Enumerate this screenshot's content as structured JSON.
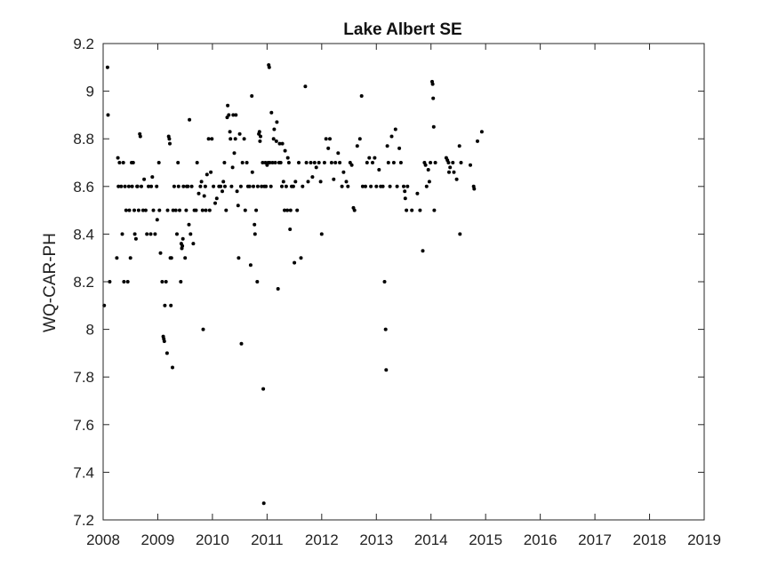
{
  "chart_data": {
    "type": "scatter",
    "title": "Lake Albert SE",
    "xlabel": "",
    "ylabel": "WQ-CAR-PH",
    "xlim": [
      2008,
      2019
    ],
    "ylim": [
      7.2,
      9.2
    ],
    "xticks": [
      "2008",
      "2009",
      "2010",
      "2011",
      "2012",
      "2013",
      "2014",
      "2015",
      "2016",
      "2017",
      "2018",
      "2019"
    ],
    "yticks": [
      "7.2",
      "7.4",
      "7.6",
      "7.8",
      "8",
      "8.2",
      "8.4",
      "8.6",
      "8.8",
      "9",
      "9.2"
    ],
    "grid": false,
    "marker_color": "#000000",
    "points": [
      [
        2008.02,
        8.1
      ],
      [
        2008.08,
        9.1
      ],
      [
        2008.09,
        8.9
      ],
      [
        2008.12,
        8.2
      ],
      [
        2008.25,
        8.3
      ],
      [
        2008.27,
        8.72
      ],
      [
        2008.28,
        8.6
      ],
      [
        2008.3,
        8.7
      ],
      [
        2008.33,
        8.6
      ],
      [
        2008.35,
        8.4
      ],
      [
        2008.37,
        8.7
      ],
      [
        2008.38,
        8.2
      ],
      [
        2008.4,
        8.6
      ],
      [
        2008.42,
        8.5
      ],
      [
        2008.45,
        8.2
      ],
      [
        2008.47,
        8.6
      ],
      [
        2008.48,
        8.5
      ],
      [
        2008.5,
        8.3
      ],
      [
        2008.52,
        8.7
      ],
      [
        2008.53,
        8.6
      ],
      [
        2008.55,
        8.7
      ],
      [
        2008.57,
        8.5
      ],
      [
        2008.58,
        8.4
      ],
      [
        2008.6,
        8.38
      ],
      [
        2008.62,
        8.6
      ],
      [
        2008.63,
        8.6
      ],
      [
        2008.65,
        8.5
      ],
      [
        2008.67,
        8.82
      ],
      [
        2008.68,
        8.81
      ],
      [
        2008.7,
        8.6
      ],
      [
        2008.73,
        8.5
      ],
      [
        2008.75,
        8.63
      ],
      [
        2008.78,
        8.5
      ],
      [
        2008.8,
        8.4
      ],
      [
        2008.83,
        8.6
      ],
      [
        2008.87,
        8.4
      ],
      [
        2008.88,
        8.6
      ],
      [
        2008.9,
        8.64
      ],
      [
        2008.92,
        8.5
      ],
      [
        2008.95,
        8.4
      ],
      [
        2008.98,
        8.6
      ],
      [
        2008.99,
        8.46
      ],
      [
        2009.02,
        8.7
      ],
      [
        2009.03,
        8.5
      ],
      [
        2009.05,
        8.32
      ],
      [
        2009.08,
        8.2
      ],
      [
        2009.1,
        7.97
      ],
      [
        2009.11,
        7.96
      ],
      [
        2009.12,
        7.95
      ],
      [
        2009.13,
        8.1
      ],
      [
        2009.15,
        8.2
      ],
      [
        2009.17,
        7.9
      ],
      [
        2009.18,
        8.5
      ],
      [
        2009.2,
        8.81
      ],
      [
        2009.21,
        8.8
      ],
      [
        2009.22,
        8.78
      ],
      [
        2009.23,
        8.3
      ],
      [
        2009.24,
        8.1
      ],
      [
        2009.25,
        8.3
      ],
      [
        2009.27,
        7.84
      ],
      [
        2009.28,
        8.5
      ],
      [
        2009.3,
        8.6
      ],
      [
        2009.33,
        8.5
      ],
      [
        2009.35,
        8.4
      ],
      [
        2009.37,
        8.7
      ],
      [
        2009.38,
        8.6
      ],
      [
        2009.4,
        8.5
      ],
      [
        2009.42,
        8.2
      ],
      [
        2009.43,
        8.36
      ],
      [
        2009.44,
        8.34
      ],
      [
        2009.45,
        8.35
      ],
      [
        2009.46,
        8.38
      ],
      [
        2009.47,
        8.6
      ],
      [
        2009.5,
        8.3
      ],
      [
        2009.52,
        8.5
      ],
      [
        2009.53,
        8.6
      ],
      [
        2009.55,
        8.6
      ],
      [
        2009.57,
        8.44
      ],
      [
        2009.58,
        8.88
      ],
      [
        2009.6,
        8.4
      ],
      [
        2009.62,
        8.6
      ],
      [
        2009.65,
        8.36
      ],
      [
        2009.67,
        8.5
      ],
      [
        2009.7,
        8.5
      ],
      [
        2009.72,
        8.7
      ],
      [
        2009.75,
        8.57
      ],
      [
        2009.78,
        8.6
      ],
      [
        2009.8,
        8.62
      ],
      [
        2009.82,
        8.5
      ],
      [
        2009.83,
        8.0
      ],
      [
        2009.85,
        8.56
      ],
      [
        2009.87,
        8.6
      ],
      [
        2009.88,
        8.5
      ],
      [
        2009.9,
        8.65
      ],
      [
        2009.93,
        8.8
      ],
      [
        2009.95,
        8.5
      ],
      [
        2009.97,
        8.66
      ],
      [
        2009.99,
        8.8
      ],
      [
        2010.02,
        8.6
      ],
      [
        2010.05,
        8.53
      ],
      [
        2010.08,
        8.55
      ],
      [
        2010.12,
        8.6
      ],
      [
        2010.15,
        8.6
      ],
      [
        2010.18,
        8.58
      ],
      [
        2010.2,
        8.62
      ],
      [
        2010.22,
        8.7
      ],
      [
        2010.23,
        8.6
      ],
      [
        2010.25,
        8.5
      ],
      [
        2010.27,
        8.89
      ],
      [
        2010.28,
        8.94
      ],
      [
        2010.3,
        8.9
      ],
      [
        2010.32,
        8.83
      ],
      [
        2010.33,
        8.8
      ],
      [
        2010.35,
        8.6
      ],
      [
        2010.37,
        8.68
      ],
      [
        2010.38,
        8.9
      ],
      [
        2010.4,
        8.74
      ],
      [
        2010.42,
        8.8
      ],
      [
        2010.43,
        8.9
      ],
      [
        2010.45,
        8.58
      ],
      [
        2010.47,
        8.52
      ],
      [
        2010.48,
        8.3
      ],
      [
        2010.5,
        8.82
      ],
      [
        2010.52,
        8.6
      ],
      [
        2010.53,
        7.94
      ],
      [
        2010.55,
        8.7
      ],
      [
        2010.58,
        8.8
      ],
      [
        2010.6,
        8.5
      ],
      [
        2010.63,
        8.7
      ],
      [
        2010.65,
        8.6
      ],
      [
        2010.68,
        8.6
      ],
      [
        2010.7,
        8.27
      ],
      [
        2010.72,
        8.98
      ],
      [
        2010.73,
        8.66
      ],
      [
        2010.75,
        8.6
      ],
      [
        2010.77,
        8.44
      ],
      [
        2010.78,
        8.4
      ],
      [
        2010.8,
        8.5
      ],
      [
        2010.82,
        8.2
      ],
      [
        2010.83,
        8.6
      ],
      [
        2010.85,
        8.82
      ],
      [
        2010.86,
        8.83
      ],
      [
        2010.87,
        8.79
      ],
      [
        2010.88,
        8.81
      ],
      [
        2010.9,
        8.6
      ],
      [
        2010.92,
        8.7
      ],
      [
        2010.93,
        7.75
      ],
      [
        2010.94,
        7.27
      ],
      [
        2010.95,
        8.6
      ],
      [
        2010.97,
        8.7
      ],
      [
        2010.98,
        8.6
      ],
      [
        2011.0,
        8.69
      ],
      [
        2011.02,
        8.7
      ],
      [
        2011.03,
        9.11
      ],
      [
        2011.04,
        9.1
      ],
      [
        2011.05,
        8.7
      ],
      [
        2011.07,
        8.6
      ],
      [
        2011.08,
        8.91
      ],
      [
        2011.1,
        8.7
      ],
      [
        2011.12,
        8.8
      ],
      [
        2011.13,
        8.84
      ],
      [
        2011.15,
        8.7
      ],
      [
        2011.17,
        8.79
      ],
      [
        2011.18,
        8.87
      ],
      [
        2011.2,
        8.17
      ],
      [
        2011.22,
        8.7
      ],
      [
        2011.23,
        8.78
      ],
      [
        2011.25,
        8.7
      ],
      [
        2011.27,
        8.6
      ],
      [
        2011.28,
        8.78
      ],
      [
        2011.3,
        8.62
      ],
      [
        2011.32,
        8.5
      ],
      [
        2011.33,
        8.75
      ],
      [
        2011.35,
        8.6
      ],
      [
        2011.37,
        8.5
      ],
      [
        2011.38,
        8.72
      ],
      [
        2011.4,
        8.7
      ],
      [
        2011.42,
        8.42
      ],
      [
        2011.43,
        8.5
      ],
      [
        2011.45,
        8.6
      ],
      [
        2011.48,
        8.6
      ],
      [
        2011.5,
        8.28
      ],
      [
        2011.52,
        8.62
      ],
      [
        2011.55,
        8.5
      ],
      [
        2011.58,
        8.7
      ],
      [
        2011.62,
        8.3
      ],
      [
        2011.65,
        8.6
      ],
      [
        2011.7,
        9.02
      ],
      [
        2011.72,
        8.7
      ],
      [
        2011.75,
        8.62
      ],
      [
        2011.8,
        8.7
      ],
      [
        2011.83,
        8.64
      ],
      [
        2011.87,
        8.7
      ],
      [
        2011.9,
        8.68
      ],
      [
        2011.95,
        8.7
      ],
      [
        2011.98,
        8.62
      ],
      [
        2012.0,
        8.4
      ],
      [
        2012.05,
        8.7
      ],
      [
        2012.08,
        8.8
      ],
      [
        2012.12,
        8.76
      ],
      [
        2012.15,
        8.8
      ],
      [
        2012.18,
        8.7
      ],
      [
        2012.22,
        8.63
      ],
      [
        2012.25,
        8.7
      ],
      [
        2012.3,
        8.74
      ],
      [
        2012.33,
        8.7
      ],
      [
        2012.37,
        8.6
      ],
      [
        2012.4,
        8.66
      ],
      [
        2012.45,
        8.62
      ],
      [
        2012.48,
        8.6
      ],
      [
        2012.52,
        8.7
      ],
      [
        2012.55,
        8.69
      ],
      [
        2012.58,
        8.51
      ],
      [
        2012.6,
        8.5
      ],
      [
        2012.65,
        8.77
      ],
      [
        2012.7,
        8.8
      ],
      [
        2012.73,
        8.98
      ],
      [
        2012.75,
        8.6
      ],
      [
        2012.8,
        8.6
      ],
      [
        2012.83,
        8.7
      ],
      [
        2012.87,
        8.72
      ],
      [
        2012.9,
        8.6
      ],
      [
        2012.93,
        8.7
      ],
      [
        2012.97,
        8.72
      ],
      [
        2013.0,
        8.6
      ],
      [
        2013.05,
        8.67
      ],
      [
        2013.08,
        8.6
      ],
      [
        2013.12,
        8.6
      ],
      [
        2013.15,
        8.2
      ],
      [
        2013.17,
        8.0
      ],
      [
        2013.18,
        7.83
      ],
      [
        2013.2,
        8.77
      ],
      [
        2013.22,
        8.7
      ],
      [
        2013.25,
        8.6
      ],
      [
        2013.28,
        8.81
      ],
      [
        2013.32,
        8.7
      ],
      [
        2013.35,
        8.84
      ],
      [
        2013.38,
        8.6
      ],
      [
        2013.42,
        8.76
      ],
      [
        2013.45,
        8.7
      ],
      [
        2013.5,
        8.6
      ],
      [
        2013.52,
        8.58
      ],
      [
        2013.53,
        8.55
      ],
      [
        2013.55,
        8.5
      ],
      [
        2013.57,
        8.6
      ],
      [
        2013.65,
        8.5
      ],
      [
        2013.75,
        8.57
      ],
      [
        2013.8,
        8.5
      ],
      [
        2013.85,
        8.33
      ],
      [
        2013.88,
        8.7
      ],
      [
        2013.9,
        8.69
      ],
      [
        2013.92,
        8.6
      ],
      [
        2013.95,
        8.67
      ],
      [
        2013.97,
        8.62
      ],
      [
        2013.99,
        8.7
      ],
      [
        2014.02,
        9.04
      ],
      [
        2014.03,
        9.03
      ],
      [
        2014.04,
        8.97
      ],
      [
        2014.05,
        8.85
      ],
      [
        2014.06,
        8.5
      ],
      [
        2014.08,
        8.7
      ],
      [
        2014.28,
        8.72
      ],
      [
        2014.3,
        8.71
      ],
      [
        2014.32,
        8.7
      ],
      [
        2014.33,
        8.66
      ],
      [
        2014.35,
        8.68
      ],
      [
        2014.4,
        8.7
      ],
      [
        2014.42,
        8.66
      ],
      [
        2014.47,
        8.63
      ],
      [
        2014.52,
        8.77
      ],
      [
        2014.53,
        8.4
      ],
      [
        2014.55,
        8.7
      ],
      [
        2014.72,
        8.69
      ],
      [
        2014.78,
        8.6
      ],
      [
        2014.79,
        8.59
      ],
      [
        2014.85,
        8.79
      ],
      [
        2014.93,
        8.83
      ]
    ]
  }
}
